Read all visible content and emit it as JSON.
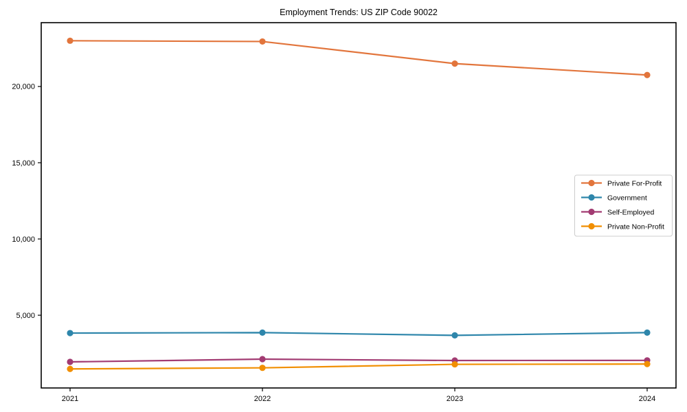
{
  "chart_data": {
    "type": "line",
    "title": "Employment Trends: US ZIP Code 90022",
    "x": [
      2021,
      2022,
      2023,
      2024
    ],
    "x_tick_labels": [
      "2021",
      "2022",
      "2023",
      "2024"
    ],
    "y_ticks": [
      5000,
      10000,
      15000,
      20000
    ],
    "y_tick_labels": [
      "5,000",
      "10,000",
      "15,000",
      "20,000"
    ],
    "xlim": [
      2020.85,
      2024.15
    ],
    "ylim": [
      230,
      24185
    ],
    "grid": false,
    "legend_position": "center right",
    "series": [
      {
        "name": "Private For-Profit",
        "color": "#E2753C",
        "values": [
          23000,
          22950,
          21500,
          20750
        ]
      },
      {
        "name": "Government",
        "color": "#2E86AB",
        "values": [
          3830,
          3860,
          3680,
          3860
        ]
      },
      {
        "name": "Self-Employed",
        "color": "#A23B72",
        "values": [
          1940,
          2120,
          2030,
          2040
        ]
      },
      {
        "name": "Private Non-Profit",
        "color": "#F18F01",
        "values": [
          1480,
          1550,
          1780,
          1800
        ]
      }
    ]
  }
}
